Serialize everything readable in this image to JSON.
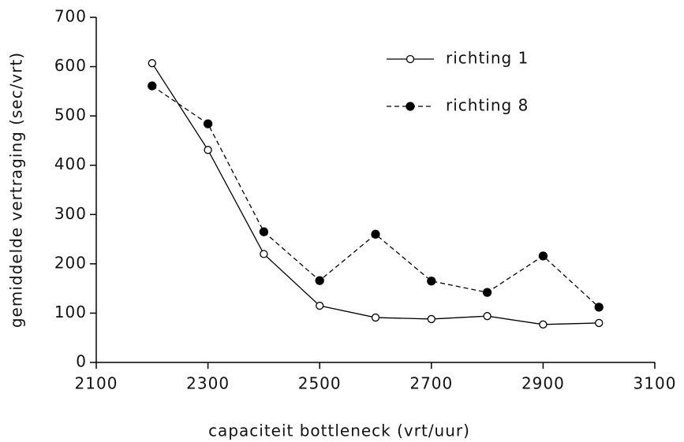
{
  "chart_data": {
    "type": "line",
    "x_label": "capaciteit bottleneck (vrt/uur)",
    "y_label": "gemiddelde vertraging (sec/vrt)",
    "x": [
      2200,
      2300,
      2400,
      2500,
      2600,
      2700,
      2800,
      2900,
      3000
    ],
    "series": [
      {
        "name": "richting 1",
        "color": "#000000",
        "marker": "open",
        "dashed": false,
        "values": [
          607,
          431,
          220,
          115,
          91,
          88,
          94,
          77,
          80
        ]
      },
      {
        "name": "richting 8",
        "color": "#000000",
        "marker": "filled",
        "dashed": true,
        "values": [
          561,
          484,
          265,
          166,
          260,
          165,
          142,
          216,
          112
        ]
      }
    ],
    "xlim": [
      2100,
      3100
    ],
    "xticks": [
      2100,
      2300,
      2500,
      2700,
      2900,
      3100
    ],
    "ylim": [
      0,
      700
    ],
    "yticks": [
      0,
      100,
      200,
      300,
      400,
      500,
      600,
      700
    ],
    "grid": false,
    "legend": "upper right"
  }
}
